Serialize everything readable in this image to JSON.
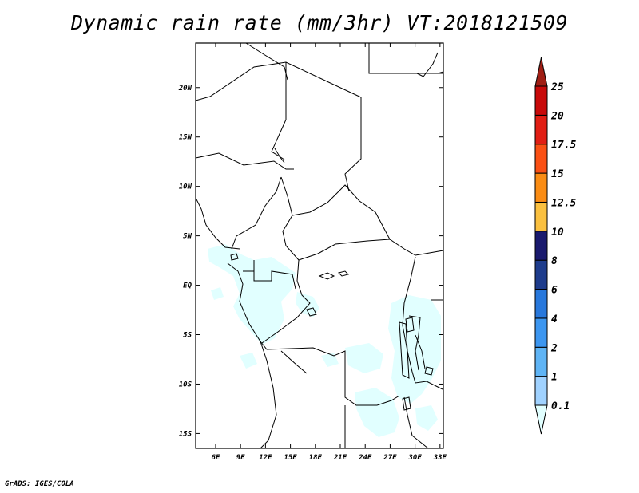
{
  "title": "Dynamic rain rate (mm/3hr) VT:2018121509",
  "credit": "GrADS: IGES/COLA",
  "map": {
    "lon_range": [
      3.6,
      33.4
    ],
    "lat_range": [
      -16.5,
      24.5
    ],
    "lon_ticks": [
      6,
      9,
      12,
      15,
      18,
      21,
      24,
      27,
      30,
      33
    ],
    "lon_labels": [
      "6E",
      "9E",
      "12E",
      "15E",
      "18E",
      "21E",
      "24E",
      "27E",
      "30E",
      "33E"
    ],
    "lat_ticks": [
      20,
      15,
      10,
      5,
      0,
      -5,
      -10,
      -15
    ],
    "lat_labels": [
      "20N",
      "15N",
      "10N",
      "5N",
      "EQ",
      "5S",
      "10S",
      "15S"
    ]
  },
  "colorbar": {
    "labels": [
      "0.1",
      "1",
      "2",
      "4",
      "6",
      "8",
      "10",
      "12.5",
      "15",
      "17.5",
      "20",
      "25"
    ],
    "colors": [
      "#e1ffff",
      "#a0d2ff",
      "#5fb4f5",
      "#3c96f0",
      "#2878dc",
      "#1e3c8c",
      "#1a1a6e",
      "#fac040",
      "#fa8c14",
      "#fa5014",
      "#e11e14",
      "#c80a0a",
      "#a01e14"
    ]
  }
}
